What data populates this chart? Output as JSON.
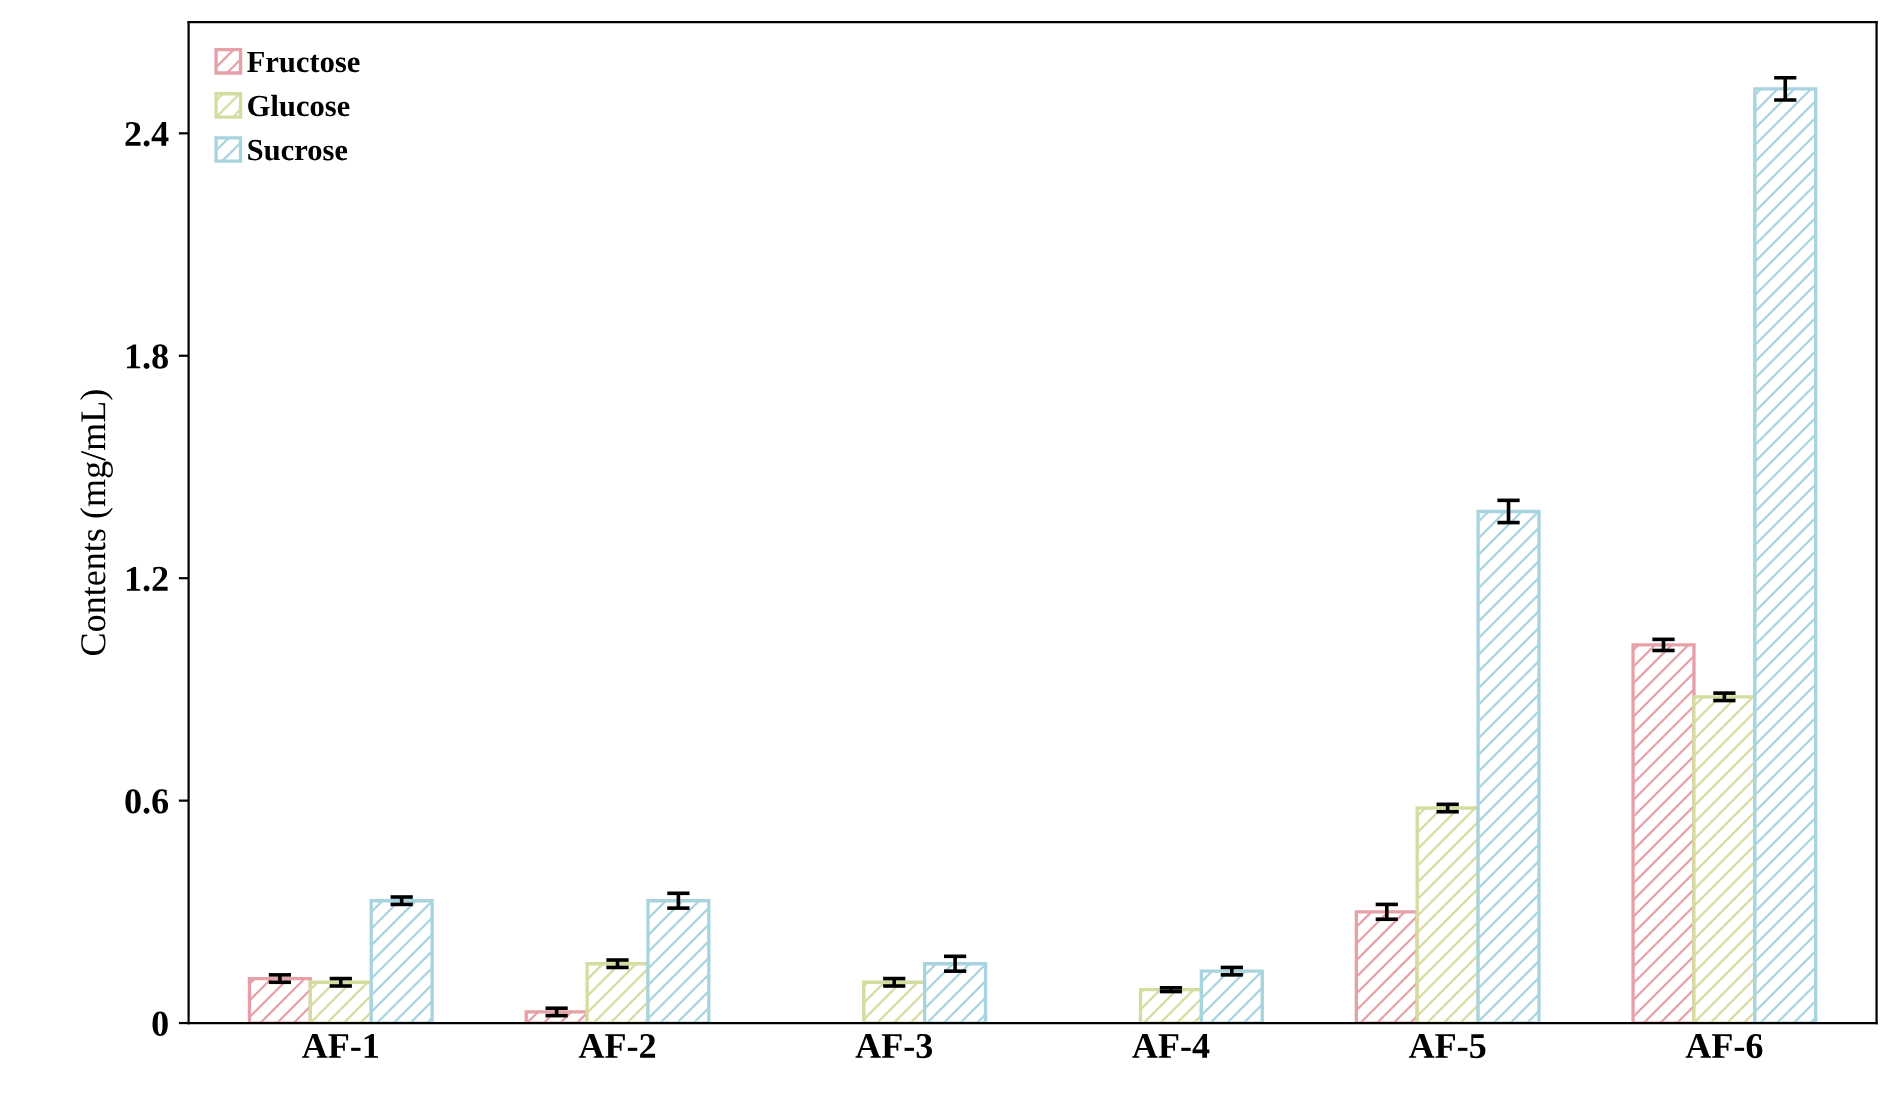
{
  "chart_data": {
    "type": "bar",
    "ylabel": "Contents (mg/mL)",
    "categories": [
      "AF-1",
      "AF-2",
      "AF-3",
      "AF-4",
      "AF-5",
      "AF-6"
    ],
    "series": [
      {
        "name": "Fructose",
        "color": "#e6a0a8",
        "values": [
          0.12,
          0.03,
          null,
          null,
          0.3,
          1.02
        ],
        "errors": [
          0.01,
          0.01,
          null,
          null,
          0.02,
          0.015
        ]
      },
      {
        "name": "Glucose",
        "color": "#d6dca0",
        "values": [
          0.11,
          0.16,
          0.11,
          0.09,
          0.58,
          0.88
        ],
        "errors": [
          0.01,
          0.01,
          0.01,
          0.005,
          0.01,
          0.01
        ]
      },
      {
        "name": "Sucrose",
        "color": "#a8d4e0",
        "values": [
          0.33,
          0.33,
          0.16,
          0.14,
          1.38,
          2.52
        ],
        "errors": [
          0.01,
          0.02,
          0.02,
          0.01,
          0.03,
          0.03
        ]
      }
    ],
    "ylim": [
      0,
      2.7
    ],
    "yticks": [
      0,
      0.6,
      1.2,
      1.8,
      2.4
    ],
    "grid": false,
    "legend": "top left"
  }
}
